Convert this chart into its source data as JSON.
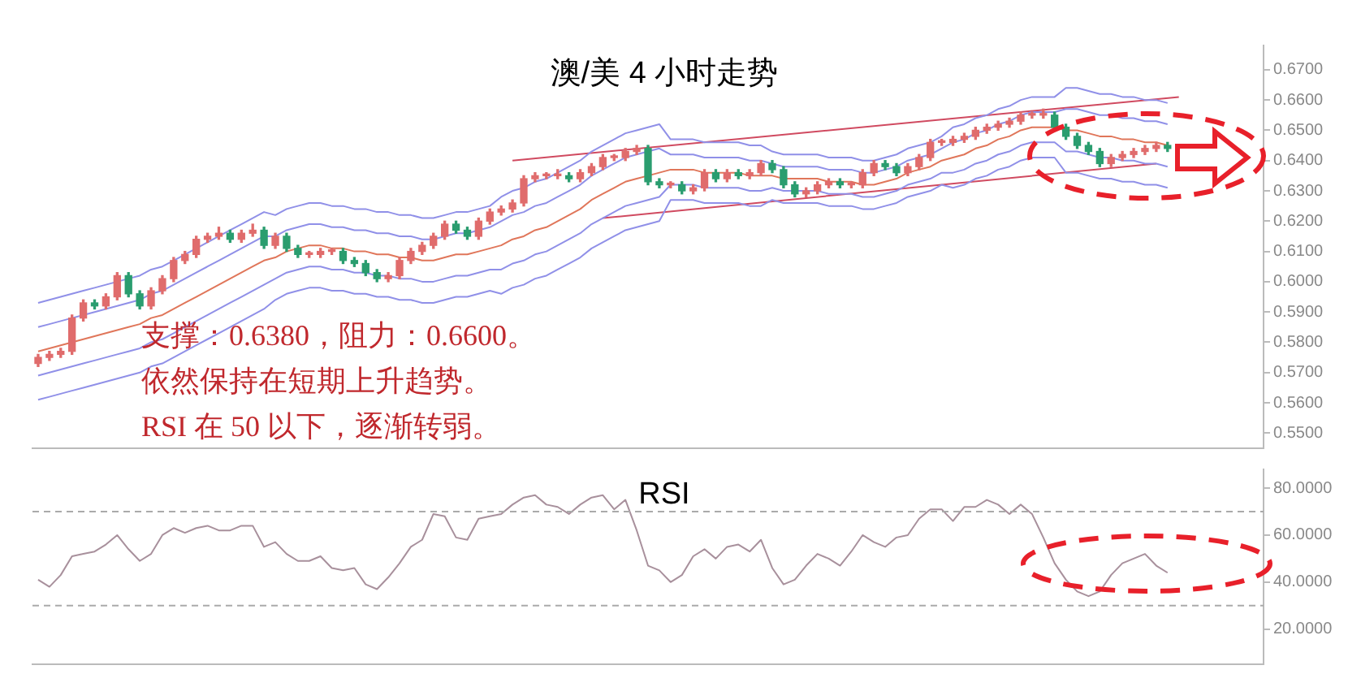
{
  "chart_data": [
    {
      "type": "candlestick",
      "title": "澳/美 4 小时走势",
      "annotations": [
        "支撑：0.6380，阻力：0.6600。",
        "依然保持在短期上升趋势。",
        "RSI 在 50 以下，逐渐转弱。"
      ],
      "categories": [
        null,
        null,
        null,
        null,
        null,
        null,
        null,
        null,
        null,
        null,
        null,
        null,
        null,
        null,
        null,
        null,
        null,
        null,
        null,
        null,
        null,
        null,
        null,
        null,
        null,
        null,
        null,
        null,
        null,
        null,
        null,
        null,
        null,
        null,
        null,
        null,
        null,
        null,
        null,
        null,
        null,
        null,
        null,
        null,
        null,
        null,
        null,
        null,
        null,
        null,
        null,
        null,
        null,
        null,
        null,
        null,
        null,
        null,
        null,
        null,
        null,
        null,
        null,
        null,
        null,
        null,
        null,
        null,
        null,
        null,
        null,
        null,
        null,
        null,
        null,
        null,
        null,
        null,
        null,
        null,
        null,
        null,
        null,
        null,
        null,
        null,
        null,
        null,
        null,
        null,
        null,
        null,
        null,
        null,
        null,
        null,
        null,
        null,
        null,
        null,
        null,
        null,
        null,
        null,
        null,
        null,
        null,
        null,
        null
      ],
      "colors": [
        "#e06c6c",
        "#e06c6c",
        "#e06c6c",
        "#e06c6c",
        "#e06c6c",
        "#2a9d6f",
        "#e06c6c",
        "#e06c6c",
        "#2a9d6f",
        "#2a9d6f",
        "#e06c6c",
        "#e06c6c",
        "#e06c6c",
        "#e06c6c",
        "#e06c6c",
        "#e06c6c",
        "#e06c6c",
        "#2a9d6f",
        "#e06c6c",
        "#e06c6c",
        "#2a9d6f",
        "#e06c6c",
        "#2a9d6f",
        "#2a9d6f",
        "#e06c6c",
        "#e06c6c",
        "#e06c6c",
        "#2a9d6f",
        "#2a9d6f",
        "#2a9d6f",
        "#2a9d6f",
        "#e06c6c",
        "#e06c6c",
        "#e06c6c",
        "#e06c6c",
        "#e06c6c",
        "#e06c6c",
        "#2a9d6f",
        "#2a9d6f",
        "#e06c6c",
        "#e06c6c",
        "#e06c6c",
        "#e06c6c",
        "#e06c6c",
        "#e06c6c",
        "#e06c6c",
        "#e06c6c",
        "#2a9d6f",
        "#e06c6c",
        "#e06c6c",
        "#e06c6c",
        "#e06c6c",
        "#e06c6c",
        "#e06c6c",
        "#2a9d6f",
        "#2a9d6f",
        "#e06c6c",
        "#2a9d6f",
        "#e06c6c",
        "#e06c6c",
        "#2a9d6f",
        "#e06c6c",
        "#2a9d6f",
        "#e06c6c",
        "#e06c6c",
        "#2a9d6f",
        "#2a9d6f",
        "#2a9d6f",
        "#e06c6c",
        "#e06c6c",
        "#e06c6c",
        "#2a9d6f",
        "#e06c6c",
        "#e06c6c",
        "#e06c6c",
        "#2a9d6f",
        "#2a9d6f",
        "#e06c6c",
        "#e06c6c",
        "#e06c6c",
        "#e06c6c",
        "#e06c6c",
        "#e06c6c",
        "#e06c6c",
        "#e06c6c",
        "#e06c6c",
        "#e06c6c",
        "#e06c6c",
        "#e06c6c",
        "#e06c6c",
        "#2a9d6f",
        "#2a9d6f",
        "#2a9d6f",
        "#2a9d6f",
        "#2a9d6f",
        "#e06c6c",
        "#e06c6c",
        "#e06c6c",
        "#e06c6c",
        "#e06c6c",
        "#2a9d6f",
        null,
        null,
        null,
        null,
        null,
        null,
        null,
        null
      ],
      "ohlc": [
        [
          0.573,
          0.576,
          0.572,
          0.575
        ],
        [
          0.575,
          0.577,
          0.574,
          0.576
        ],
        [
          0.576,
          0.578,
          0.575,
          0.577
        ],
        [
          0.577,
          0.589,
          0.576,
          0.588
        ],
        [
          0.588,
          0.594,
          0.587,
          0.593
        ],
        [
          0.593,
          0.594,
          0.591,
          0.592
        ],
        [
          0.592,
          0.596,
          0.591,
          0.595
        ],
        [
          0.595,
          0.603,
          0.594,
          0.602
        ],
        [
          0.602,
          0.603,
          0.595,
          0.596
        ],
        [
          0.596,
          0.597,
          0.591,
          0.592
        ],
        [
          0.592,
          0.598,
          0.591,
          0.597
        ],
        [
          0.597,
          0.602,
          0.596,
          0.601
        ],
        [
          0.601,
          0.608,
          0.6,
          0.607
        ],
        [
          0.607,
          0.61,
          0.606,
          0.609
        ],
        [
          0.609,
          0.615,
          0.608,
          0.614
        ],
        [
          0.614,
          0.616,
          0.613,
          0.615
        ],
        [
          0.615,
          0.618,
          0.614,
          0.616
        ],
        [
          0.616,
          0.617,
          0.613,
          0.614
        ],
        [
          0.614,
          0.617,
          0.613,
          0.616
        ],
        [
          0.616,
          0.619,
          0.615,
          0.617
        ],
        [
          0.617,
          0.618,
          0.611,
          0.612
        ],
        [
          0.612,
          0.616,
          0.611,
          0.615
        ],
        [
          0.615,
          0.616,
          0.61,
          0.611
        ],
        [
          0.611,
          0.612,
          0.608,
          0.609
        ],
        [
          0.609,
          0.61,
          0.608,
          0.609
        ],
        [
          0.609,
          0.611,
          0.608,
          0.61
        ],
        [
          0.61,
          0.611,
          0.609,
          0.61
        ],
        [
          0.61,
          0.611,
          0.606,
          0.607
        ],
        [
          0.607,
          0.608,
          0.605,
          0.606
        ],
        [
          0.606,
          0.607,
          0.602,
          0.603
        ],
        [
          0.603,
          0.604,
          0.6,
          0.601
        ],
        [
          0.601,
          0.603,
          0.6,
          0.602
        ],
        [
          0.602,
          0.608,
          0.601,
          0.607
        ],
        [
          0.607,
          0.611,
          0.606,
          0.61
        ],
        [
          0.61,
          0.613,
          0.609,
          0.612
        ],
        [
          0.612,
          0.616,
          0.611,
          0.615
        ],
        [
          0.615,
          0.62,
          0.614,
          0.619
        ],
        [
          0.619,
          0.62,
          0.616,
          0.617
        ],
        [
          0.617,
          0.618,
          0.614,
          0.615
        ],
        [
          0.615,
          0.621,
          0.614,
          0.62
        ],
        [
          0.62,
          0.624,
          0.619,
          0.623
        ],
        [
          0.623,
          0.625,
          0.622,
          0.624
        ],
        [
          0.624,
          0.627,
          0.623,
          0.626
        ],
        [
          0.626,
          0.635,
          0.625,
          0.634
        ],
        [
          0.634,
          0.636,
          0.633,
          0.635
        ],
        [
          0.635,
          0.636,
          0.634,
          0.635
        ],
        [
          0.635,
          0.637,
          0.634,
          0.635
        ],
        [
          0.635,
          0.636,
          0.633,
          0.634
        ],
        [
          0.634,
          0.637,
          0.633,
          0.636
        ],
        [
          0.636,
          0.639,
          0.635,
          0.638
        ],
        [
          0.638,
          0.642,
          0.637,
          0.641
        ],
        [
          0.641,
          0.642,
          0.64,
          0.641
        ],
        [
          0.641,
          0.644,
          0.64,
          0.643
        ],
        [
          0.643,
          0.645,
          0.642,
          0.644
        ],
        [
          0.644,
          0.645,
          0.632,
          0.633
        ],
        [
          0.633,
          0.634,
          0.631,
          0.632
        ],
        [
          0.632,
          0.633,
          0.631,
          0.632
        ],
        [
          0.632,
          0.633,
          0.629,
          0.63
        ],
        [
          0.63,
          0.632,
          0.629,
          0.631
        ],
        [
          0.631,
          0.637,
          0.63,
          0.636
        ],
        [
          0.636,
          0.637,
          0.633,
          0.634
        ],
        [
          0.634,
          0.637,
          0.633,
          0.636
        ],
        [
          0.636,
          0.637,
          0.634,
          0.635
        ],
        [
          0.635,
          0.637,
          0.634,
          0.636
        ],
        [
          0.636,
          0.64,
          0.635,
          0.639
        ],
        [
          0.639,
          0.64,
          0.636,
          0.637
        ],
        [
          0.637,
          0.638,
          0.631,
          0.632
        ],
        [
          0.632,
          0.633,
          0.628,
          0.629
        ],
        [
          0.629,
          0.631,
          0.628,
          0.63
        ],
        [
          0.63,
          0.633,
          0.629,
          0.632
        ],
        [
          0.632,
          0.634,
          0.631,
          0.633
        ],
        [
          0.633,
          0.634,
          0.631,
          0.632
        ],
        [
          0.632,
          0.633,
          0.631,
          0.632
        ],
        [
          0.632,
          0.637,
          0.631,
          0.636
        ],
        [
          0.636,
          0.64,
          0.635,
          0.639
        ],
        [
          0.639,
          0.64,
          0.637,
          0.638
        ],
        [
          0.638,
          0.639,
          0.635,
          0.636
        ],
        [
          0.636,
          0.639,
          0.635,
          0.638
        ],
        [
          0.638,
          0.642,
          0.637,
          0.641
        ],
        [
          0.641,
          0.647,
          0.64,
          0.646
        ],
        [
          0.646,
          0.647,
          0.645,
          0.646
        ],
        [
          0.646,
          0.648,
          0.645,
          0.647
        ],
        [
          0.647,
          0.649,
          0.646,
          0.648
        ],
        [
          0.648,
          0.651,
          0.647,
          0.65
        ],
        [
          0.65,
          0.652,
          0.649,
          0.651
        ],
        [
          0.651,
          0.653,
          0.65,
          0.652
        ],
        [
          0.652,
          0.654,
          0.651,
          0.653
        ],
        [
          0.653,
          0.656,
          0.652,
          0.655
        ],
        [
          0.655,
          0.656,
          0.654,
          0.655
        ],
        [
          0.655,
          0.657,
          0.654,
          0.655
        ],
        [
          0.655,
          0.656,
          0.65,
          0.651
        ],
        [
          0.651,
          0.652,
          0.647,
          0.648
        ],
        [
          0.648,
          0.649,
          0.644,
          0.645
        ],
        [
          0.645,
          0.646,
          0.642,
          0.643
        ],
        [
          0.643,
          0.644,
          0.638,
          0.639
        ],
        [
          0.639,
          0.642,
          0.638,
          0.641
        ],
        [
          0.641,
          0.643,
          0.64,
          0.642
        ],
        [
          0.642,
          0.644,
          0.641,
          0.643
        ],
        [
          0.643,
          0.645,
          0.642,
          0.644
        ],
        [
          0.644,
          0.646,
          0.643,
          0.645
        ],
        [
          0.645,
          0.646,
          0.643,
          0.644
        ],
        null,
        null,
        null,
        null,
        null,
        null,
        null,
        null
      ],
      "series": [
        {
          "type": "line",
          "color": "#9090e8",
          "values": [
            0.593,
            0.594,
            0.595,
            0.596,
            0.597,
            0.598,
            0.599,
            0.6,
            0.601,
            0.602,
            0.604,
            0.605,
            0.607,
            0.609,
            0.611,
            0.613,
            0.615,
            0.617,
            0.619,
            0.621,
            0.623,
            0.622,
            0.624,
            0.625,
            0.626,
            0.626,
            0.625,
            0.625,
            0.624,
            0.624,
            0.623,
            0.623,
            0.622,
            0.622,
            0.621,
            0.621,
            0.622,
            0.623,
            0.623,
            0.624,
            0.625,
            0.628,
            0.63,
            0.631,
            0.633,
            0.634,
            0.636,
            0.638,
            0.64,
            0.643,
            0.645,
            0.647,
            0.649,
            0.65,
            0.651,
            0.652,
            0.647,
            0.647,
            0.647,
            0.646,
            0.646,
            0.646,
            0.646,
            0.645,
            0.645,
            0.643,
            0.642,
            0.642,
            0.642,
            0.642,
            0.641,
            0.641,
            0.641,
            0.64,
            0.64,
            0.641,
            0.642,
            0.644,
            0.645,
            0.646,
            0.648,
            0.651,
            0.652,
            0.654,
            0.655,
            0.657,
            0.658,
            0.66,
            0.661,
            0.661,
            0.661,
            0.664,
            0.664,
            0.663,
            0.662,
            0.662,
            0.661,
            0.661,
            0.66,
            0.66,
            0.659,
            null,
            null,
            null,
            null,
            null,
            null,
            null,
            null
          ]
        },
        {
          "type": "line",
          "color": "#9090e8",
          "values": [
            0.585,
            0.586,
            0.587,
            0.588,
            0.589,
            0.59,
            0.591,
            0.592,
            0.593,
            0.594,
            0.596,
            0.597,
            0.599,
            0.601,
            0.603,
            0.605,
            0.607,
            0.609,
            0.611,
            0.613,
            0.615,
            0.615,
            0.617,
            0.618,
            0.619,
            0.619,
            0.618,
            0.618,
            0.617,
            0.617,
            0.616,
            0.616,
            0.615,
            0.615,
            0.614,
            0.614,
            0.615,
            0.616,
            0.616,
            0.617,
            0.618,
            0.62,
            0.622,
            0.623,
            0.625,
            0.626,
            0.628,
            0.63,
            0.632,
            0.635,
            0.637,
            0.639,
            0.641,
            0.642,
            0.643,
            0.644,
            0.642,
            0.642,
            0.642,
            0.641,
            0.641,
            0.641,
            0.641,
            0.64,
            0.64,
            0.639,
            0.638,
            0.638,
            0.638,
            0.638,
            0.637,
            0.637,
            0.637,
            0.636,
            0.636,
            0.637,
            0.638,
            0.64,
            0.641,
            0.642,
            0.644,
            0.646,
            0.647,
            0.649,
            0.65,
            0.652,
            0.653,
            0.655,
            0.656,
            0.656,
            0.656,
            0.657,
            0.657,
            0.656,
            0.655,
            0.655,
            0.654,
            0.654,
            0.653,
            0.653,
            0.652,
            null,
            null,
            null,
            null,
            null,
            null,
            null,
            null
          ]
        },
        {
          "type": "line",
          "color": "#e0765a",
          "values": [
            0.577,
            0.578,
            0.579,
            0.58,
            0.581,
            0.582,
            0.583,
            0.584,
            0.585,
            0.586,
            0.588,
            0.589,
            0.591,
            0.593,
            0.595,
            0.597,
            0.599,
            0.601,
            0.603,
            0.605,
            0.607,
            0.608,
            0.61,
            0.611,
            0.612,
            0.612,
            0.611,
            0.611,
            0.61,
            0.61,
            0.609,
            0.609,
            0.608,
            0.608,
            0.607,
            0.607,
            0.608,
            0.609,
            0.609,
            0.61,
            0.611,
            0.612,
            0.614,
            0.615,
            0.617,
            0.618,
            0.62,
            0.622,
            0.624,
            0.627,
            0.629,
            0.631,
            0.633,
            0.634,
            0.635,
            0.636,
            0.637,
            0.637,
            0.637,
            0.636,
            0.636,
            0.636,
            0.636,
            0.635,
            0.635,
            0.635,
            0.634,
            0.634,
            0.634,
            0.634,
            0.633,
            0.633,
            0.633,
            0.632,
            0.632,
            0.633,
            0.634,
            0.636,
            0.637,
            0.638,
            0.64,
            0.641,
            0.642,
            0.644,
            0.645,
            0.647,
            0.648,
            0.65,
            0.651,
            0.651,
            0.651,
            0.65,
            0.65,
            0.649,
            0.648,
            0.648,
            0.647,
            0.647,
            0.646,
            0.646,
            0.645,
            null,
            null,
            null,
            null,
            null,
            null,
            null,
            null
          ]
        },
        {
          "type": "line",
          "color": "#9090e8",
          "values": [
            0.569,
            0.57,
            0.571,
            0.572,
            0.573,
            0.574,
            0.575,
            0.576,
            0.577,
            0.578,
            0.58,
            0.581,
            0.583,
            0.585,
            0.587,
            0.589,
            0.591,
            0.593,
            0.595,
            0.597,
            0.599,
            0.601,
            0.603,
            0.604,
            0.605,
            0.605,
            0.604,
            0.604,
            0.603,
            0.603,
            0.602,
            0.602,
            0.601,
            0.601,
            0.6,
            0.6,
            0.601,
            0.602,
            0.602,
            0.603,
            0.604,
            0.604,
            0.606,
            0.607,
            0.609,
            0.61,
            0.612,
            0.614,
            0.616,
            0.619,
            0.621,
            0.623,
            0.625,
            0.626,
            0.627,
            0.628,
            0.632,
            0.632,
            0.632,
            0.631,
            0.631,
            0.631,
            0.631,
            0.63,
            0.63,
            0.631,
            0.63,
            0.63,
            0.63,
            0.63,
            0.629,
            0.629,
            0.629,
            0.628,
            0.628,
            0.629,
            0.63,
            0.632,
            0.633,
            0.634,
            0.636,
            0.636,
            0.637,
            0.639,
            0.64,
            0.642,
            0.643,
            0.645,
            0.646,
            0.646,
            0.646,
            0.643,
            0.643,
            0.642,
            0.641,
            0.641,
            0.64,
            0.64,
            0.639,
            0.639,
            0.638,
            null,
            null,
            null,
            null,
            null,
            null,
            null,
            null
          ]
        },
        {
          "type": "line",
          "color": "#9090e8",
          "values": [
            0.561,
            0.562,
            0.563,
            0.564,
            0.565,
            0.566,
            0.567,
            0.568,
            0.569,
            0.57,
            0.572,
            0.573,
            0.575,
            0.577,
            0.579,
            0.581,
            0.583,
            0.585,
            0.587,
            0.589,
            0.591,
            0.594,
            0.596,
            0.597,
            0.598,
            0.598,
            0.597,
            0.597,
            0.596,
            0.596,
            0.595,
            0.595,
            0.594,
            0.594,
            0.593,
            0.593,
            0.594,
            0.595,
            0.595,
            0.596,
            0.597,
            0.596,
            0.598,
            0.599,
            0.601,
            0.602,
            0.604,
            0.606,
            0.608,
            0.611,
            0.613,
            0.615,
            0.617,
            0.618,
            0.619,
            0.62,
            0.627,
            0.627,
            0.627,
            0.626,
            0.626,
            0.626,
            0.626,
            0.625,
            0.625,
            0.627,
            0.626,
            0.626,
            0.626,
            0.626,
            0.625,
            0.625,
            0.625,
            0.624,
            0.624,
            0.625,
            0.626,
            0.628,
            0.629,
            0.63,
            0.632,
            0.631,
            0.632,
            0.634,
            0.635,
            0.637,
            0.638,
            0.64,
            0.641,
            0.641,
            0.641,
            0.636,
            0.636,
            0.635,
            0.634,
            0.634,
            0.633,
            0.633,
            0.632,
            0.632,
            0.631,
            null,
            null,
            null,
            null,
            null,
            null,
            null,
            null
          ]
        },
        {
          "type": "line",
          "color": "#d04a60",
          "values": [
            null,
            null,
            null,
            null,
            null,
            null,
            null,
            null,
            null,
            null,
            null,
            null,
            null,
            null,
            null,
            null,
            null,
            null,
            null,
            null,
            null,
            null,
            null,
            null,
            null,
            null,
            null,
            null,
            null,
            null,
            null,
            null,
            null,
            null,
            null,
            null,
            null,
            null,
            null,
            null,
            null,
            null,
            0.64,
            null,
            null,
            null,
            null,
            null,
            null,
            null,
            null,
            null,
            null,
            null,
            null,
            null,
            null,
            null,
            null,
            null,
            null,
            null,
            null,
            null,
            null,
            null,
            null,
            null,
            null,
            null,
            null,
            null,
            null,
            null,
            null,
            null,
            null,
            null,
            null,
            null,
            null,
            null,
            null,
            null,
            null,
            null,
            null,
            null,
            null,
            null,
            null,
            null,
            null,
            null,
            null,
            null,
            null,
            null,
            null,
            null,
            null,
            0.661,
            null,
            null,
            null,
            null,
            null,
            null,
            null
          ]
        },
        {
          "type": "line",
          "color": "#d04a60",
          "values": [
            null,
            null,
            null,
            null,
            null,
            null,
            null,
            null,
            null,
            null,
            null,
            null,
            null,
            null,
            null,
            null,
            null,
            null,
            null,
            null,
            null,
            null,
            null,
            null,
            null,
            null,
            null,
            null,
            null,
            null,
            null,
            null,
            null,
            null,
            null,
            null,
            null,
            null,
            null,
            null,
            null,
            null,
            null,
            null,
            null,
            null,
            null,
            null,
            null,
            null,
            0.621,
            null,
            null,
            null,
            null,
            null,
            null,
            null,
            null,
            null,
            null,
            null,
            null,
            null,
            null,
            null,
            null,
            null,
            null,
            null,
            null,
            null,
            null,
            null,
            null,
            null,
            null,
            null,
            null,
            null,
            null,
            null,
            null,
            null,
            null,
            null,
            null,
            null,
            null,
            null,
            null,
            null,
            null,
            null,
            null,
            null,
            null,
            null,
            null,
            0.639,
            null,
            null,
            null,
            null,
            null,
            null,
            null,
            null,
            null
          ]
        }
      ],
      "ylim": [
        0.545,
        0.678
      ],
      "yticks": [
        {
          "value": 0.55,
          "label": "0.5500"
        },
        {
          "value": 0.56,
          "label": "0.5600"
        },
        {
          "value": 0.57,
          "label": "0.5700"
        },
        {
          "value": 0.58,
          "label": "0.5800"
        },
        {
          "value": 0.59,
          "label": "0.5900"
        },
        {
          "value": 0.6,
          "label": "0.6000"
        },
        {
          "value": 0.61,
          "label": "0.6100"
        },
        {
          "value": 0.62,
          "label": "0.6200"
        },
        {
          "value": 0.63,
          "label": "0.6300"
        },
        {
          "value": 0.64,
          "label": "0.6400"
        },
        {
          "value": 0.65,
          "label": "0.6500"
        },
        {
          "value": 0.66,
          "label": "0.6600"
        },
        {
          "value": 0.67,
          "label": "0.6700"
        }
      ],
      "tick_labels": "y"
    },
    {
      "type": "line",
      "title": "RSI",
      "categories": [
        null,
        null,
        null,
        null,
        null,
        null,
        null,
        null,
        null,
        null,
        null,
        null,
        null,
        null,
        null,
        null,
        null,
        null,
        null,
        null,
        null,
        null,
        null,
        null,
        null,
        null,
        null,
        null,
        null,
        null,
        null,
        null,
        null,
        null,
        null,
        null,
        null,
        null,
        null,
        null,
        null,
        null,
        null,
        null,
        null,
        null,
        null,
        null,
        null,
        null,
        null,
        null,
        null,
        null,
        null,
        null,
        null,
        null,
        null,
        null,
        null,
        null,
        null,
        null,
        null,
        null,
        null,
        null,
        null,
        null,
        null,
        null,
        null,
        null,
        null,
        null,
        null,
        null,
        null,
        null,
        null,
        null,
        null,
        null,
        null,
        null,
        null,
        null,
        null,
        null,
        null,
        null,
        null,
        null,
        null,
        null,
        null,
        null,
        null,
        null,
        null,
        null,
        null,
        null,
        null,
        null,
        null,
        null,
        null
      ],
      "series": [
        {
          "color": "#a8909c",
          "values": [
            41,
            38,
            43,
            51,
            52,
            53,
            56,
            60,
            54,
            49,
            52,
            60,
            63,
            61,
            63,
            64,
            62,
            62,
            64,
            64,
            55,
            57,
            52,
            49,
            49,
            51,
            46,
            45,
            46,
            39,
            37,
            42,
            48,
            55,
            58,
            69,
            68,
            59,
            58,
            67,
            68,
            69,
            73,
            76,
            77,
            73,
            72,
            69,
            73,
            76,
            77,
            71,
            75,
            62,
            47,
            45,
            40,
            43,
            51,
            54,
            50,
            55,
            56,
            53,
            58,
            46,
            39,
            41,
            47,
            52,
            50,
            47,
            53,
            60,
            57,
            55,
            59,
            60,
            67,
            71,
            71,
            66,
            72,
            72,
            75,
            73,
            69,
            73,
            69,
            59,
            48,
            41,
            36,
            34,
            36,
            43,
            48,
            50,
            52,
            47,
            44,
            null,
            null,
            null,
            null,
            null,
            null,
            null,
            null
          ]
        }
      ],
      "ref_lines": [
        {
          "axis": "y",
          "value": 70,
          "color": "#aaaaaa",
          "line_style": "dashed"
        },
        {
          "axis": "y",
          "value": 30,
          "color": "#aaaaaa",
          "line_style": "dashed"
        }
      ],
      "ylim": [
        5,
        88
      ],
      "yticks": [
        {
          "value": 20,
          "label": "20.0000"
        },
        {
          "value": 40,
          "label": "40.0000"
        },
        {
          "value": 60,
          "label": "60.0000"
        },
        {
          "value": 80,
          "label": "80.0000"
        }
      ],
      "tick_labels": "y"
    }
  ]
}
